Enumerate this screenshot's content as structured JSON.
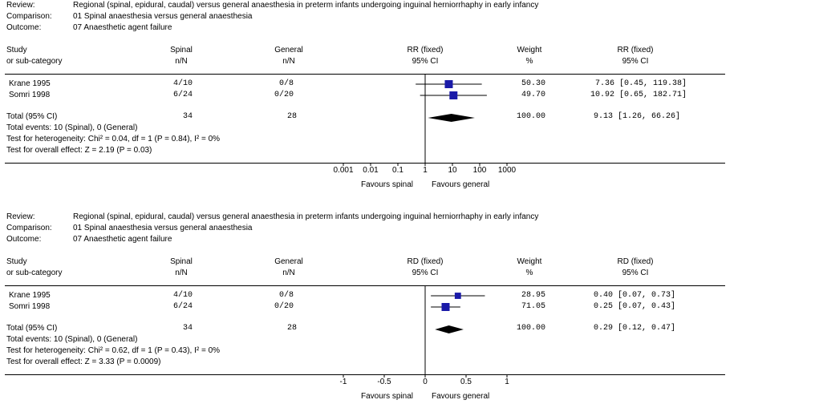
{
  "chart_data": [
    {
      "type": "forest",
      "review_label": "Review:",
      "review": "Regional (spinal, epidural, caudal) versus general anaesthesia in preterm infants undergoing inguinal herniorrhaphy in early infancy",
      "comparison_label": "Comparison:",
      "comparison": "01 Spinal anaesthesia versus general anaesthesia",
      "outcome_label": "Outcome:",
      "outcome": "07 Anaesthetic agent failure",
      "headers": {
        "study": "Study",
        "study2": "or sub-category",
        "g1": "Spinal",
        "g1b": "n/N",
        "g2": "General",
        "g2b": "n/N",
        "measure": "RR (fixed)",
        "ci": "95% CI",
        "weight": "Weight",
        "weight_unit": "%",
        "measure2": "RR (fixed)",
        "ci2": "95% CI"
      },
      "scale": "log",
      "xlim": [
        0.001,
        1000
      ],
      "null_value": 1,
      "studies": [
        {
          "name": "Krane 1995",
          "g1": "4/10",
          "g2": "0/8",
          "weight": "50.30",
          "est_text": "7.36 [0.45, 119.38]",
          "est": 7.36,
          "lo": 0.45,
          "hi": 119.38,
          "w": 50.3
        },
        {
          "name": "Somri 1998",
          "g1": "6/24",
          "g2": "0/20",
          "weight": "49.70",
          "est_text": "10.92 [0.65, 182.71]",
          "est": 10.92,
          "lo": 0.65,
          "hi": 182.71,
          "w": 49.7
        }
      ],
      "total": {
        "name": "Total (95% CI)",
        "g1": "34",
        "g2": "28",
        "weight": "100.00",
        "est_text": "9.13 [1.26, 66.26]",
        "est": 9.13,
        "lo": 1.26,
        "hi": 66.26
      },
      "footer": [
        "Total events: 10 (Spinal), 0 (General)",
        "Test for heterogeneity: Chi² = 0.04, df = 1 (P = 0.84), I² = 0%",
        "Test for overall effect: Z = 2.19 (P = 0.03)"
      ],
      "ticks": [
        {
          "v": 0.001,
          "label": "0.001"
        },
        {
          "v": 0.01,
          "label": "0.01"
        },
        {
          "v": 0.1,
          "label": "0.1"
        },
        {
          "v": 1,
          "label": "1"
        },
        {
          "v": 10,
          "label": "10"
        },
        {
          "v": 100,
          "label": "100"
        },
        {
          "v": 1000,
          "label": "1000"
        }
      ],
      "favours_left": "Favours spinal",
      "favours_right": "Favours general",
      "colors": {
        "marker": "#1a1aa8",
        "diamond": "#000000"
      }
    },
    {
      "type": "forest",
      "review_label": "Review:",
      "review": "Regional (spinal, epidural, caudal) versus general anaesthesia in preterm infants undergoing inguinal herniorrhaphy in early infancy",
      "comparison_label": "Comparison:",
      "comparison": "01 Spinal anaesthesia versus general anaesthesia",
      "outcome_label": "Outcome:",
      "outcome": "07 Anaesthetic agent failure",
      "headers": {
        "study": "Study",
        "study2": "or sub-category",
        "g1": "Spinal",
        "g1b": "n/N",
        "g2": "General",
        "g2b": "n/N",
        "measure": "RD (fixed)",
        "ci": "95% CI",
        "weight": "Weight",
        "weight_unit": "%",
        "measure2": "RD (fixed)",
        "ci2": "95% CI"
      },
      "scale": "linear",
      "xlim": [
        -1,
        1
      ],
      "null_value": 0,
      "studies": [
        {
          "name": "Krane 1995",
          "g1": "4/10",
          "g2": "0/8",
          "weight": "28.95",
          "est_text": "0.40 [0.07, 0.73]",
          "est": 0.4,
          "lo": 0.07,
          "hi": 0.73,
          "w": 28.95
        },
        {
          "name": "Somri 1998",
          "g1": "6/24",
          "g2": "0/20",
          "weight": "71.05",
          "est_text": "0.25 [0.07, 0.43]",
          "est": 0.25,
          "lo": 0.07,
          "hi": 0.43,
          "w": 71.05
        }
      ],
      "total": {
        "name": "Total (95% CI)",
        "g1": "34",
        "g2": "28",
        "weight": "100.00",
        "est_text": "0.29 [0.12, 0.47]",
        "est": 0.29,
        "lo": 0.12,
        "hi": 0.47
      },
      "footer": [
        "Total events: 10 (Spinal), 0 (General)",
        "Test for heterogeneity: Chi² = 0.62, df = 1 (P = 0.43), I² = 0%",
        "Test for overall effect: Z = 3.33 (P = 0.0009)"
      ],
      "ticks": [
        {
          "v": -1,
          "label": "-1"
        },
        {
          "v": -0.5,
          "label": "-0.5"
        },
        {
          "v": 0,
          "label": "0"
        },
        {
          "v": 0.5,
          "label": "0.5"
        },
        {
          "v": 1,
          "label": "1"
        }
      ],
      "favours_left": "Favours spinal",
      "favours_right": "Favours general",
      "colors": {
        "marker": "#1a1aa8",
        "diamond": "#000000"
      }
    }
  ]
}
